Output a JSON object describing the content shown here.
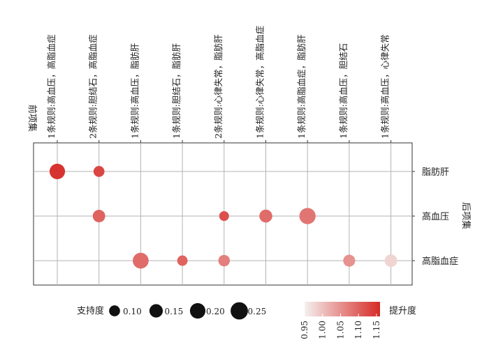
{
  "chart_data": {
    "type": "scatter",
    "title": "",
    "xlabel": "前项集",
    "ylabel": "后项集",
    "x_categories": [
      "1条规则:高血压，高脂血症",
      "2条规则:胆结石，高脂血症",
      "1条规则:高血压，脂肪肝",
      "1条规则:胆结石，脂肪肝",
      "2条规则:心律失常，脂肪肝",
      "1条规则:心律失常，高脂血症",
      "1条规则:高脂血症，脂肪肝",
      "1条规则:高血压，胆结石",
      "1条规则:高血压，心律失常"
    ],
    "y_categories": [
      "脂肪肝",
      "高血压",
      "高脂血症"
    ],
    "points": [
      {
        "x": "1条规则:高血压，高脂血症",
        "y": "脂肪肝",
        "support": 0.2,
        "lift": 1.15
      },
      {
        "x": "2条规则:胆结石，高脂血症",
        "y": "脂肪肝",
        "support": 0.1,
        "lift": 1.13
      },
      {
        "x": "2条规则:胆结石，高脂血症",
        "y": "高血压",
        "support": 0.13,
        "lift": 1.1
      },
      {
        "x": "1条规则:高血压，脂肪肝",
        "y": "高脂血症",
        "support": 0.21,
        "lift": 1.09
      },
      {
        "x": "1条规则:胆结石，脂肪肝",
        "y": "高脂血症",
        "support": 0.09,
        "lift": 1.1
      },
      {
        "x": "2条规则:心律失常，脂肪肝",
        "y": "高血压",
        "support": 0.08,
        "lift": 1.12
      },
      {
        "x": "2条规则:心律失常，脂肪肝",
        "y": "高脂血症",
        "support": 0.11,
        "lift": 1.07
      },
      {
        "x": "1条规则:心律失常，高脂血症",
        "y": "高血压",
        "support": 0.14,
        "lift": 1.09
      },
      {
        "x": "1条规则:高脂血症，脂肪肝",
        "y": "高血压",
        "support": 0.22,
        "lift": 1.08
      },
      {
        "x": "1条规则:高血压，胆结石",
        "y": "高脂血症",
        "support": 0.12,
        "lift": 1.05
      },
      {
        "x": "1条规则:高血压，心律失常",
        "y": "高脂血症",
        "support": 0.13,
        "lift": 0.98
      }
    ],
    "size_legend": {
      "title": "支持度",
      "values": [
        0.1,
        0.15,
        0.2,
        0.25
      ]
    },
    "color_legend": {
      "title": "提升度",
      "ticks": [
        0.95,
        1.0,
        1.05,
        1.1,
        1.15
      ],
      "range": [
        0.95,
        1.16
      ],
      "low_color": "#f4f0ef",
      "high_color": "#d62a26"
    },
    "grid": true,
    "legend_position": "bottom"
  }
}
